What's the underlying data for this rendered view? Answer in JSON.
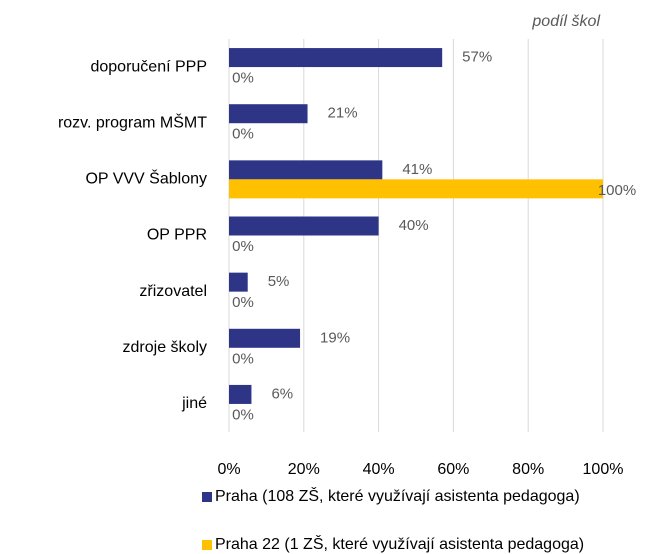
{
  "chart_data": {
    "type": "bar",
    "orientation": "horizontal",
    "axis_title": "podíl škol",
    "categories": [
      "doporučení PPP",
      "rozv. program MŠMT",
      "OP VVV Šablony",
      "OP PPR",
      "zřizovatel",
      "zdroje školy",
      "jiné"
    ],
    "series": [
      {
        "name": "Praha (108 ZŠ, které využívají asistenta pedagoga)",
        "color": "#2e3486",
        "values": [
          57,
          21,
          41,
          40,
          5,
          19,
          6
        ],
        "value_labels": [
          "57%",
          "21%",
          "41%",
          "40%",
          "5%",
          "19%",
          "6%"
        ]
      },
      {
        "name": "Praha 22 (1 ZŠ, které využívají asistenta pedagoga)",
        "color": "#ffc000",
        "values": [
          0,
          0,
          100,
          0,
          0,
          0,
          0
        ],
        "value_labels": [
          "0%",
          "0%",
          "100%",
          "0%",
          "0%",
          "0%",
          "0%"
        ]
      }
    ],
    "xlim": [
      0,
      100
    ],
    "xticks": [
      {
        "value": 0,
        "label": "0%"
      },
      {
        "value": 20,
        "label": "20%"
      },
      {
        "value": 40,
        "label": "40%"
      },
      {
        "value": 60,
        "label": "60%"
      },
      {
        "value": 80,
        "label": "80%"
      },
      {
        "value": 100,
        "label": "100%"
      }
    ],
    "grid": true
  }
}
